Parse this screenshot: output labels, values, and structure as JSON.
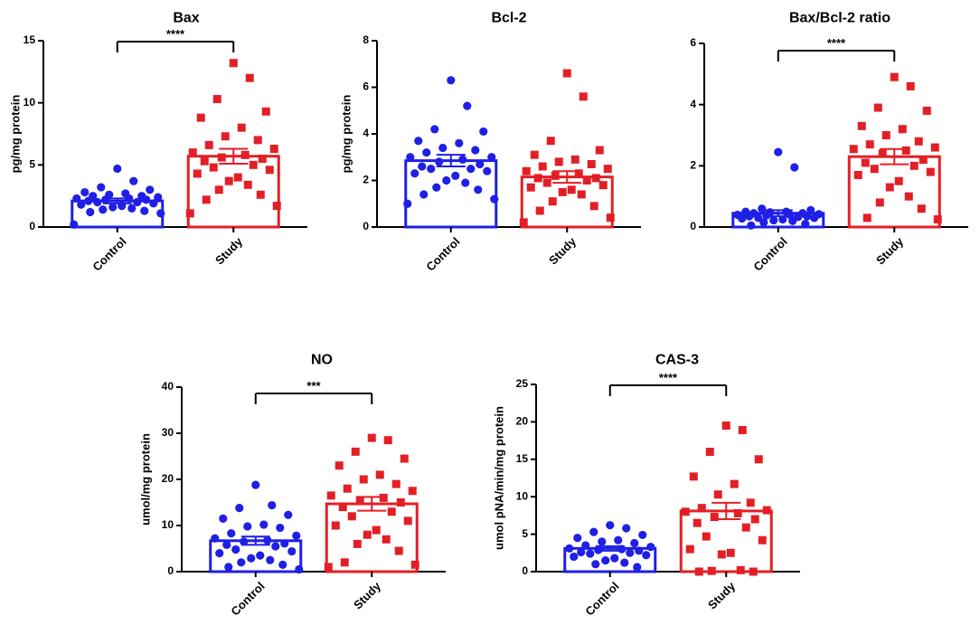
{
  "colors": {
    "control": "#1f1fe6",
    "study": "#e31f26",
    "axis": "#000000"
  },
  "chart_data": [
    {
      "type": "bar",
      "title": "Bax",
      "ylabel": "pg/mg protein",
      "categories": [
        "Control",
        "Study"
      ],
      "ylim": [
        0,
        15
      ],
      "yticks": [
        0,
        5,
        10,
        15
      ],
      "series": [
        {
          "name": "Control",
          "marker": "circle",
          "mean": 2.1,
          "sem": 0.2,
          "points": [
            4.7,
            3.7,
            3.2,
            3.0,
            2.8,
            2.7,
            2.6,
            2.5,
            2.5,
            2.4,
            2.3,
            2.3,
            2.2,
            2.2,
            2.1,
            2.0,
            2.0,
            1.9,
            1.8,
            1.7,
            1.6,
            1.5,
            1.4,
            1.3,
            1.2,
            1.1,
            0.2
          ]
        },
        {
          "name": "Study",
          "marker": "square",
          "mean": 5.7,
          "sem": 0.6,
          "points": [
            13.2,
            12.0,
            10.3,
            9.3,
            8.8,
            8.0,
            7.3,
            7.0,
            6.6,
            6.3,
            6.0,
            5.8,
            5.6,
            5.5,
            5.3,
            5.0,
            4.8,
            4.6,
            4.3,
            4.0,
            3.7,
            3.4,
            3.0,
            2.6,
            2.2,
            1.7,
            1.1
          ]
        }
      ],
      "significance": "****"
    },
    {
      "type": "bar",
      "title": "Bcl-2",
      "ylabel": "pg/mg protein",
      "categories": [
        "Control",
        "Study"
      ],
      "ylim": [
        0,
        8
      ],
      "yticks": [
        0,
        2,
        4,
        6,
        8
      ],
      "series": [
        {
          "name": "Control",
          "marker": "circle",
          "mean": 2.85,
          "sem": 0.25,
          "points": [
            6.3,
            5.2,
            4.2,
            4.1,
            3.7,
            3.6,
            3.4,
            3.3,
            3.2,
            3.0,
            3.0,
            2.9,
            2.8,
            2.7,
            2.6,
            2.5,
            2.5,
            2.4,
            2.3,
            2.2,
            2.0,
            1.9,
            1.7,
            1.6,
            1.4,
            1.2,
            1.0
          ]
        },
        {
          "name": "Study",
          "marker": "square",
          "mean": 2.15,
          "sem": 0.25,
          "points": [
            6.6,
            5.6,
            3.7,
            3.3,
            3.1,
            2.9,
            2.8,
            2.7,
            2.6,
            2.5,
            2.4,
            2.3,
            2.2,
            2.1,
            2.1,
            2.0,
            1.9,
            1.8,
            1.7,
            1.6,
            1.5,
            1.4,
            1.1,
            0.9,
            0.7,
            0.4,
            0.2
          ]
        }
      ],
      "significance": ""
    },
    {
      "type": "bar",
      "title": "Bax/Bcl-2 ratio",
      "ylabel": "",
      "categories": [
        "Control",
        "Study"
      ],
      "ylim": [
        0,
        6
      ],
      "yticks": [
        0,
        2,
        4,
        6
      ],
      "series": [
        {
          "name": "Control",
          "marker": "circle",
          "mean": 0.45,
          "sem": 0.1,
          "points": [
            2.45,
            1.95,
            0.6,
            0.55,
            0.5,
            0.5,
            0.48,
            0.45,
            0.45,
            0.42,
            0.4,
            0.4,
            0.38,
            0.35,
            0.35,
            0.33,
            0.3,
            0.3,
            0.28,
            0.25,
            0.22,
            0.2,
            0.15,
            0.1,
            0.05
          ]
        },
        {
          "name": "Study",
          "marker": "square",
          "mean": 2.3,
          "sem": 0.25,
          "points": [
            4.9,
            4.6,
            3.9,
            3.8,
            3.3,
            3.2,
            3.0,
            2.8,
            2.7,
            2.6,
            2.55,
            2.5,
            2.4,
            2.2,
            2.1,
            2.0,
            1.9,
            1.8,
            1.7,
            1.5,
            1.3,
            1.0,
            0.8,
            0.6,
            0.3,
            0.25
          ]
        }
      ],
      "significance": "****"
    },
    {
      "type": "bar",
      "title": "NO",
      "ylabel": "umol/mg protein",
      "categories": [
        "Control",
        "Study"
      ],
      "ylim": [
        0,
        40
      ],
      "yticks": [
        0,
        10,
        20,
        30,
        40
      ],
      "series": [
        {
          "name": "Control",
          "marker": "circle",
          "mean": 6.7,
          "sem": 0.9,
          "points": [
            18.8,
            14.4,
            13.8,
            12.3,
            11.5,
            10.2,
            9.8,
            9.5,
            8.3,
            7.8,
            7.2,
            6.8,
            6.5,
            6.1,
            5.8,
            5.5,
            4.8,
            4.4,
            4.0,
            3.5,
            2.9,
            2.5,
            2.0,
            1.5,
            1.0,
            0.5
          ]
        },
        {
          "name": "Study",
          "marker": "square",
          "mean": 14.7,
          "sem": 1.5,
          "points": [
            29.0,
            28.5,
            26.0,
            24.5,
            23.0,
            21.0,
            20.0,
            19.0,
            18.0,
            17.5,
            16.5,
            16.0,
            15.5,
            15.0,
            14.0,
            13.0,
            12.0,
            11.0,
            10.0,
            9.0,
            8.0,
            7.0,
            6.0,
            4.5,
            2.0,
            1.5,
            1.0
          ]
        }
      ],
      "significance": "***"
    },
    {
      "type": "bar",
      "title": "CAS-3",
      "ylabel": "umol pNA/min/mg protein",
      "categories": [
        "Control",
        "Study"
      ],
      "ylim": [
        0,
        25
      ],
      "yticks": [
        0,
        5,
        10,
        15,
        20,
        25
      ],
      "series": [
        {
          "name": "Control",
          "marker": "circle",
          "mean": 3.1,
          "sem": 0.3,
          "points": [
            6.2,
            5.8,
            5.3,
            4.9,
            4.5,
            4.2,
            4.0,
            3.8,
            3.5,
            3.3,
            3.1,
            3.0,
            2.9,
            2.8,
            2.6,
            2.5,
            2.4,
            2.2,
            2.0,
            1.8,
            1.5,
            1.2,
            1.0,
            0.6
          ]
        },
        {
          "name": "Study",
          "marker": "square",
          "mean": 8.1,
          "sem": 1.1,
          "points": [
            19.5,
            18.9,
            16.0,
            15.0,
            12.7,
            11.7,
            10.3,
            9.2,
            8.5,
            8.2,
            8.0,
            7.8,
            7.3,
            7.0,
            6.5,
            5.9,
            4.7,
            4.2,
            3.0,
            2.5,
            2.3,
            0.2,
            0.1,
            0.0,
            0.0
          ]
        }
      ],
      "significance": "****"
    }
  ]
}
